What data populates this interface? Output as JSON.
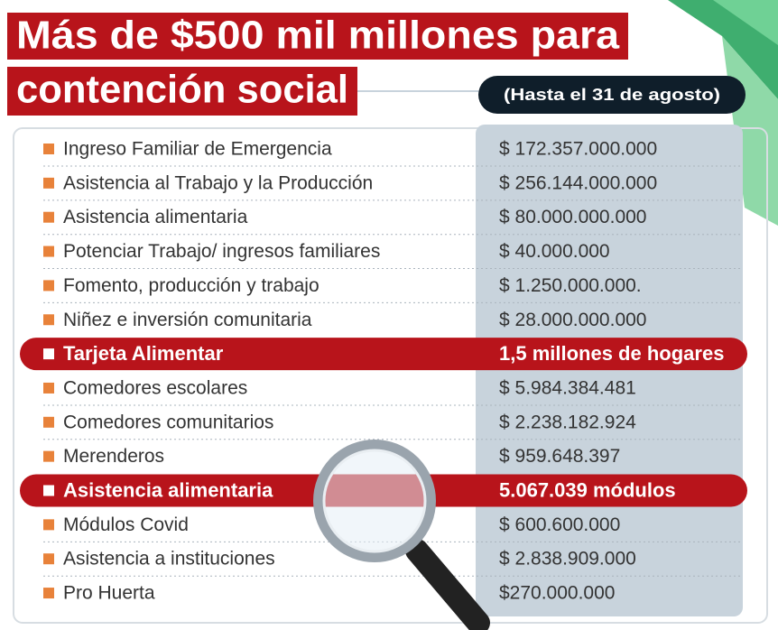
{
  "header": {
    "title_lines": [
      "Más de $500 mil millones para",
      "contención social"
    ],
    "subtitle": "(Hasta el 31 de agosto)"
  },
  "table": {
    "rows": [
      {
        "label": "Ingreso Familiar de Emergencia",
        "value": "$ 172.357.000.000"
      },
      {
        "label": "Asistencia al Trabajo y la Producción",
        "value": "$ 256.144.000.000"
      },
      {
        "label": "Asistencia alimentaria",
        "value": "$ 80.000.000.000"
      },
      {
        "label": "Potenciar Trabajo/ ingresos familiares",
        "value": "$ 40.000.000"
      },
      {
        "label": "Fomento, producción y trabajo",
        "value": "$ 1.250.000.000."
      },
      {
        "label": "Niñez e inversión comunitaria",
        "value": "$ 28.000.000.000"
      },
      {
        "label": "Tarjeta Alimentar",
        "value": "1,5 millones de hogares",
        "highlight": true
      },
      {
        "label": "Comedores escolares",
        "value": "$ 5.984.384.481"
      },
      {
        "label": "Comedores comunitarios",
        "value": "$ 2.238.182.924"
      },
      {
        "label": "Merenderos",
        "value": "$ 959.648.397"
      },
      {
        "label": "Asistencia alimentaria",
        "value": "5.067.039 módulos",
        "highlight": true
      },
      {
        "label": "Módulos Covid",
        "value": "$ 600.600.000"
      },
      {
        "label": "Asistencia a instituciones",
        "value": "$ 2.838.909.000"
      },
      {
        "label": "Pro Huerta",
        "value": "$270.000.000"
      }
    ]
  }
}
